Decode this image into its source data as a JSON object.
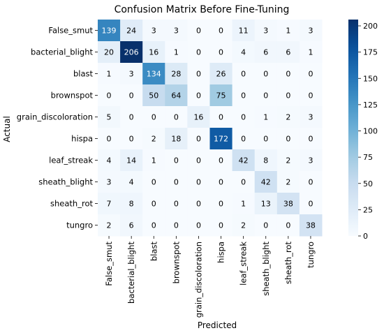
{
  "chart_data": {
    "type": "heatmap",
    "title": "Confusion Matrix Before Fine-Tuning",
    "xlabel": "Predicted",
    "ylabel": "Actual",
    "x_categories": [
      "False_smut",
      "bacterial_blight",
      "blast",
      "brownspot",
      "grain_discoloration",
      "hispa",
      "leaf_streak",
      "sheath_blight",
      "sheath_rot",
      "tungro"
    ],
    "y_categories": [
      "False_smut",
      "bacterial_blight",
      "blast",
      "brownspot",
      "grain_discoloration",
      "hispa",
      "leaf_streak",
      "sheath_blight",
      "sheath_rot",
      "tungro"
    ],
    "values": [
      [
        139,
        24,
        3,
        3,
        0,
        0,
        11,
        3,
        1,
        3
      ],
      [
        20,
        206,
        16,
        1,
        0,
        0,
        4,
        6,
        6,
        1
      ],
      [
        1,
        3,
        134,
        28,
        0,
        26,
        0,
        0,
        0,
        0
      ],
      [
        0,
        0,
        50,
        64,
        0,
        75,
        0,
        0,
        0,
        0
      ],
      [
        5,
        0,
        0,
        0,
        16,
        0,
        0,
        1,
        2,
        3
      ],
      [
        0,
        0,
        2,
        18,
        0,
        172,
        0,
        0,
        0,
        0
      ],
      [
        4,
        14,
        1,
        0,
        0,
        0,
        42,
        8,
        2,
        3
      ],
      [
        3,
        4,
        0,
        0,
        0,
        0,
        0,
        42,
        2,
        0
      ],
      [
        7,
        8,
        0,
        0,
        0,
        0,
        1,
        13,
        38,
        0
      ],
      [
        2,
        6,
        0,
        0,
        0,
        0,
        2,
        0,
        0,
        38
      ]
    ],
    "colormap": "Blues",
    "vmin": 0,
    "vmax": 206,
    "colorbar_ticks": [
      0,
      25,
      50,
      75,
      100,
      125,
      150,
      175,
      200
    ],
    "colorbar": true
  }
}
